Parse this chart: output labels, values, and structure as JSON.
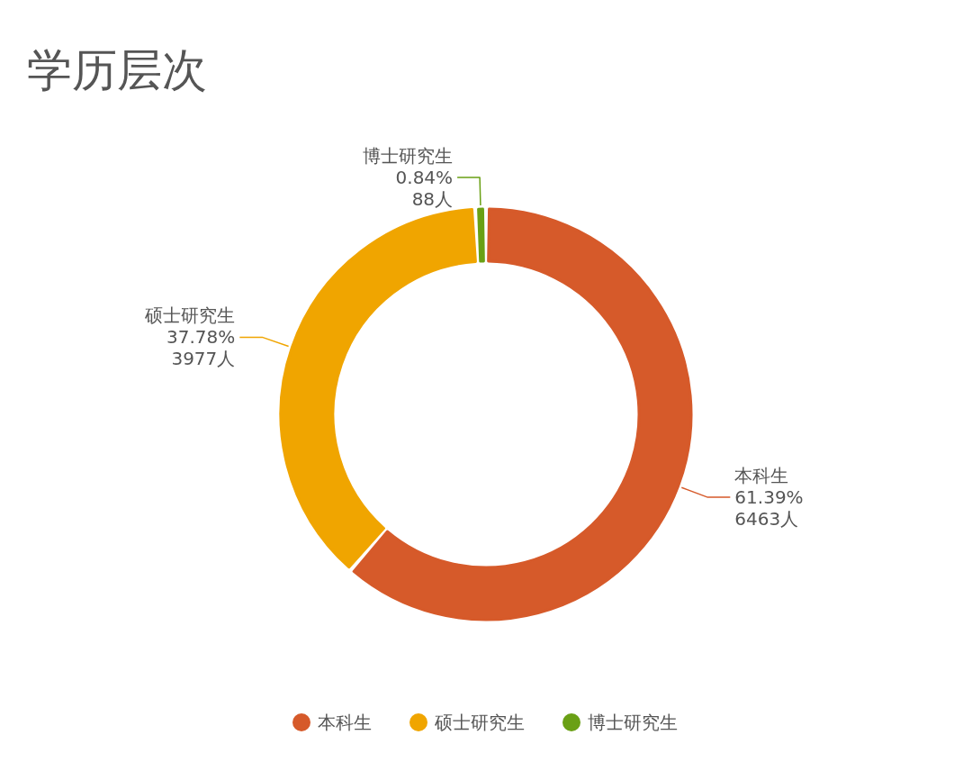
{
  "chart_data": {
    "type": "donut",
    "title": "学历层次",
    "categories": [
      "本科生",
      "硕士研究生",
      "博士研究生"
    ],
    "values": [
      6463,
      3977,
      88
    ],
    "colors": [
      "#d65a2a",
      "#f0a500",
      "#6aa015"
    ],
    "value_labels": [
      "61.39%\n6463人",
      "37.78%\n3977人",
      "0.84%\n88人"
    ],
    "legend": "bottom"
  }
}
